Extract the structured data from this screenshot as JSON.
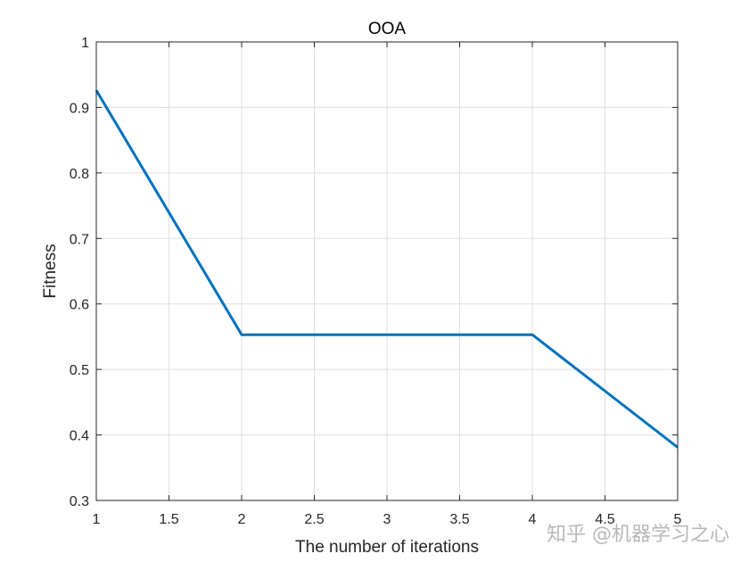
{
  "chart_data": {
    "type": "line",
    "title": "OOA",
    "xlabel": "The number of iterations",
    "ylabel": "Fitness",
    "xlim": [
      1,
      5
    ],
    "ylim": [
      0.3,
      1
    ],
    "xticks": [
      "1",
      "1.5",
      "2",
      "2.5",
      "3",
      "3.5",
      "4",
      "4.5",
      "5"
    ],
    "yticks": [
      "0.3",
      "0.4",
      "0.5",
      "0.6",
      "0.7",
      "0.8",
      "0.9",
      "1"
    ],
    "grid": true,
    "series": [
      {
        "x": [
          1,
          2,
          3,
          4,
          5
        ],
        "y": [
          0.926,
          0.553,
          0.553,
          0.553,
          0.381
        ],
        "color": "#0072BD"
      }
    ]
  },
  "watermark": "知乎 @机器学习之心"
}
